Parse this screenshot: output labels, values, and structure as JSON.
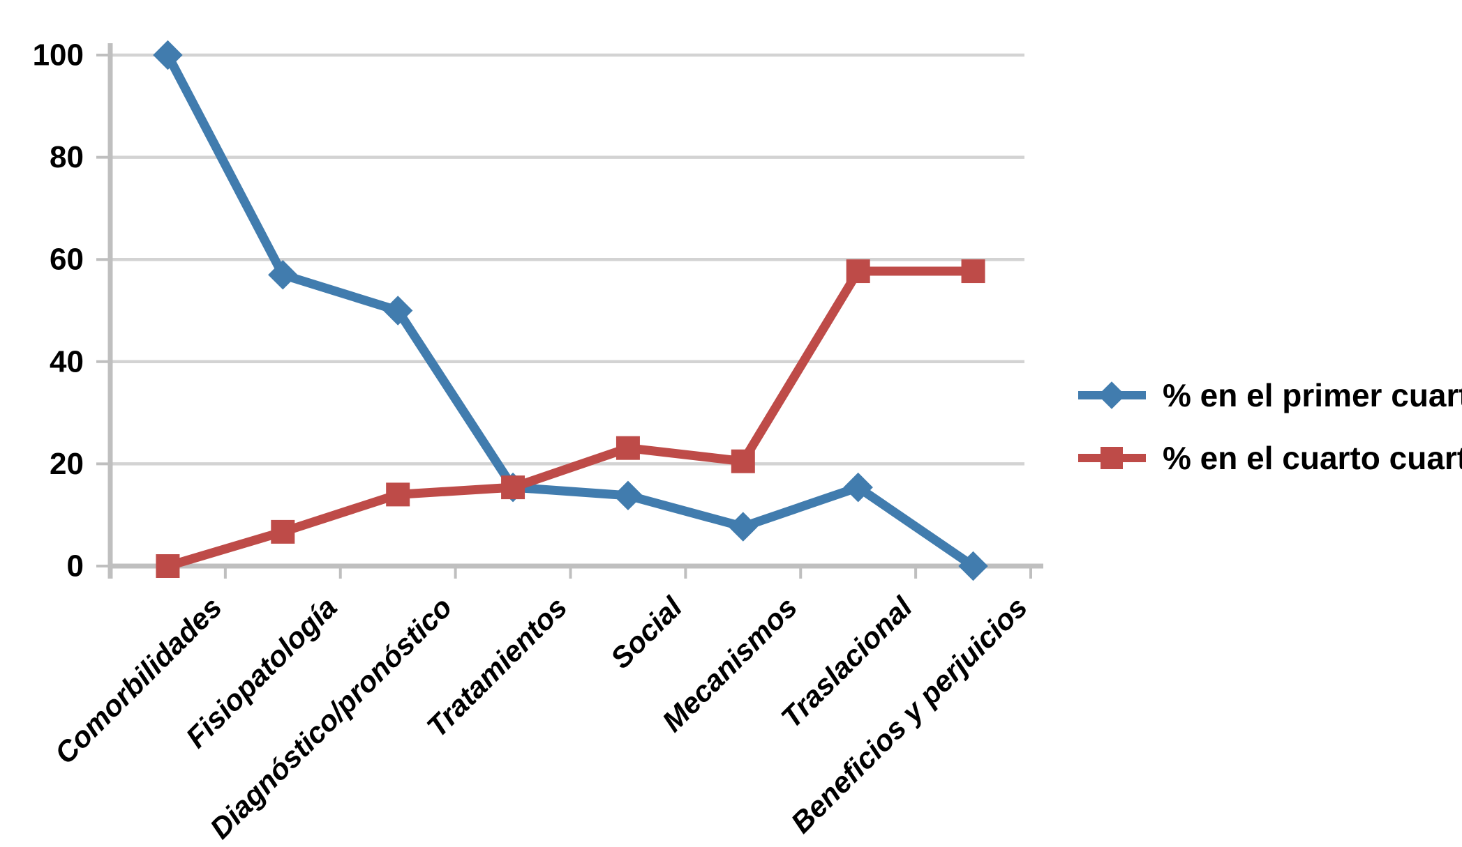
{
  "chart_data": {
    "type": "line",
    "categories": [
      "Comorbilidades",
      "Fisiopatología",
      "Diagnóstico/pronóstico",
      "Tratamientos",
      "Social",
      "Mecanismos",
      "Traslacional",
      "Beneficios y perjuicios"
    ],
    "series": [
      {
        "name": "% en el primer cuartil",
        "marker": "diamond",
        "color": "#417CAE",
        "values": [
          100,
          57,
          50,
          15.4,
          13.8,
          7.7,
          15.4,
          0
        ]
      },
      {
        "name": "% en el cuarto cuartil",
        "marker": "square",
        "color": "#BE4B48",
        "values": [
          0,
          6.7,
          14,
          15.4,
          23.1,
          20.5,
          57.7,
          57.7
        ]
      }
    ],
    "y_ticks": [
      0,
      20,
      40,
      60,
      80,
      100
    ],
    "ylim": [
      0,
      100
    ],
    "grid": "horizontal",
    "legend_position": "right",
    "colors": {
      "gridline": "#D3D3D3",
      "axis": "#BFBFBF",
      "label_text": "#000000",
      "background": "#FFFFFF"
    }
  }
}
